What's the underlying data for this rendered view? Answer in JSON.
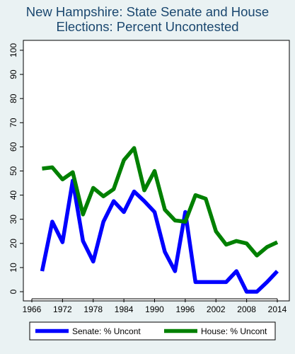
{
  "chart_data": {
    "type": "line",
    "title_lines": [
      "New Hampshire: State Senate and House",
      "Elections: Percent Uncontested"
    ],
    "xlabel": "",
    "ylabel": "",
    "xlim": [
      1966,
      2014
    ],
    "ylim": [
      0,
      100
    ],
    "xticks": [
      1966,
      1972,
      1978,
      1984,
      1990,
      1996,
      2002,
      2008,
      2014
    ],
    "yticks": [
      0,
      10,
      20,
      30,
      40,
      50,
      60,
      70,
      80,
      90,
      100
    ],
    "grid": false,
    "legend_position": "bottom",
    "series": [
      {
        "name": "Senate: % Uncont",
        "color": "#0000ff",
        "x": [
          1968,
          1970,
          1972,
          1974,
          1976,
          1978,
          1980,
          1982,
          1984,
          1986,
          1988,
          1990,
          1992,
          1994,
          1996,
          1998,
          2000,
          2002,
          2004,
          2006,
          2008,
          2010,
          2012,
          2014
        ],
        "y": [
          8.5,
          29,
          20.5,
          46,
          21,
          12.5,
          29,
          37.5,
          33,
          41.5,
          37.5,
          33,
          16.5,
          8.5,
          33,
          4,
          4,
          4,
          4,
          8.5,
          0,
          0,
          4,
          8.5
        ]
      },
      {
        "name": "House: % Uncont",
        "color": "#008000",
        "x": [
          1968,
          1970,
          1972,
          1974,
          1976,
          1978,
          1980,
          1982,
          1984,
          1986,
          1988,
          1990,
          1992,
          1994,
          1996,
          1998,
          2000,
          2002,
          2004,
          2006,
          2008,
          2010,
          2012,
          2014
        ],
        "y": [
          51,
          51.5,
          46.5,
          49.5,
          32,
          43,
          39.5,
          42.5,
          54.5,
          59.5,
          42,
          50,
          34,
          29.5,
          29,
          40,
          38.5,
          25,
          19.5,
          21,
          20,
          15,
          18.5,
          20.5
        ]
      }
    ]
  }
}
